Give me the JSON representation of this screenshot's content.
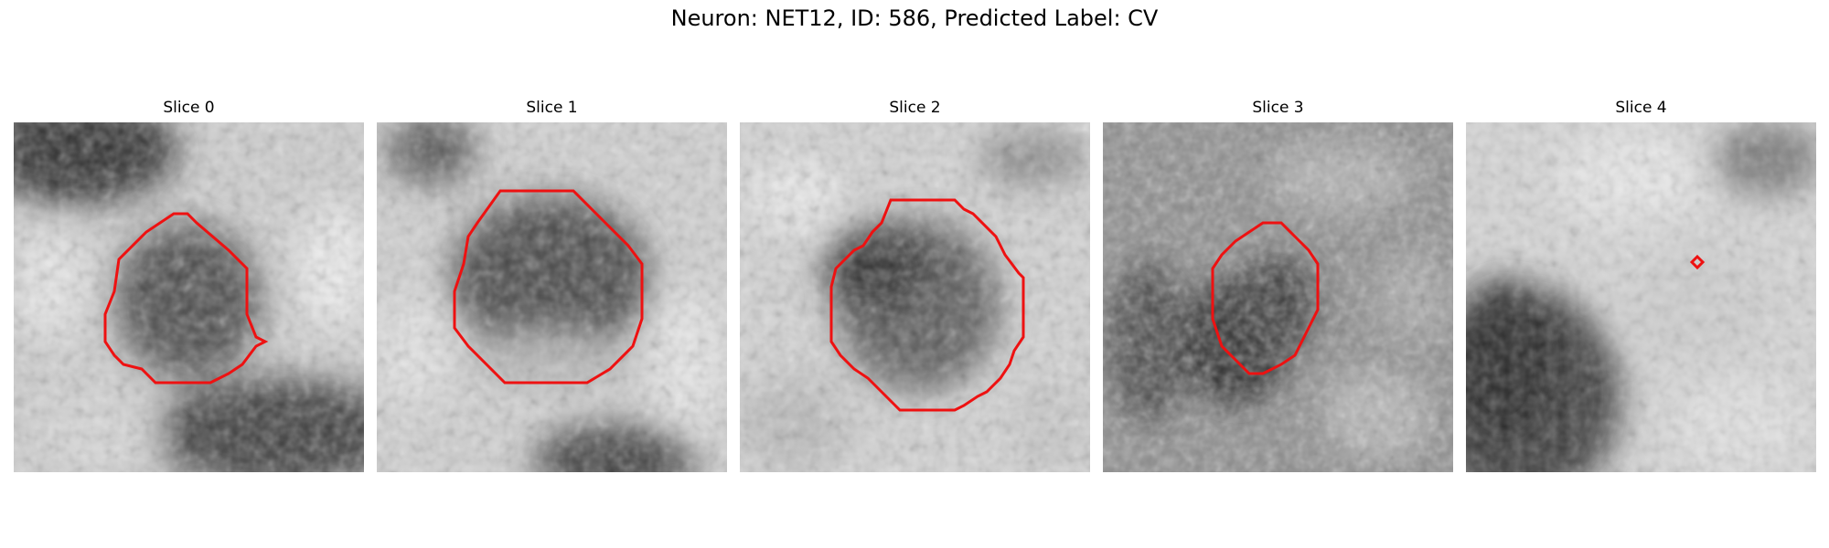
{
  "figure": {
    "title": "Neuron: NET12, ID: 586, Predicted Label: CV"
  },
  "colors": {
    "contour": "#ee1111",
    "background": "#ffffff"
  },
  "panels": [
    {
      "title": "Slice 0"
    },
    {
      "title": "Slice 1"
    },
    {
      "title": "Slice 2"
    },
    {
      "title": "Slice 3"
    },
    {
      "title": "Slice 4"
    }
  ]
}
